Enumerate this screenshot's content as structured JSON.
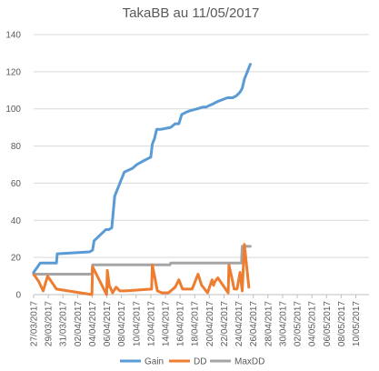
{
  "chart_data": {
    "type": "line",
    "title": "TakaBB au 11/05/2017",
    "xlabel": "",
    "ylabel": "",
    "ylim": [
      0,
      140
    ],
    "yticks": [
      0,
      20,
      40,
      60,
      80,
      100,
      120,
      140
    ],
    "x_tick_labels": [
      "27/03/2017",
      "29/03/2017",
      "31/03/2017",
      "02/04/2017",
      "04/04/2017",
      "06/04/2017",
      "08/04/2017",
      "10/04/2017",
      "12/04/2017",
      "14/04/2017",
      "16/04/2017",
      "18/04/2017",
      "20/04/2017",
      "22/04/2017",
      "24/04/2017",
      "26/04/2017",
      "28/04/2017",
      "30/04/2017",
      "02/05/2017",
      "04/05/2017",
      "06/05/2017",
      "08/05/2017",
      "10/05/2017"
    ],
    "xlim": [
      0,
      45.5
    ],
    "grid": "horizontal",
    "legend_position": "bottom",
    "series": [
      {
        "name": "Gain",
        "color": "#5b9bd5",
        "x": [
          0,
          0.9,
          2.1,
          3.1,
          3.2,
          7.6,
          8.0,
          8.2,
          9.8,
          10.2,
          10.6,
          11.0,
          11.1,
          11.6,
          11.7,
          12.3,
          13.4,
          14.0,
          14.9,
          15.9,
          16.1,
          16.4,
          16.7,
          17.0,
          17.3,
          18.6,
          19.2,
          19.7,
          20.1,
          20.6,
          21.2,
          22.2,
          23.0,
          23.4,
          24.5,
          25.0,
          26.3,
          27.0,
          27.5,
          28.0,
          28.3,
          28.6,
          29.4
        ],
        "y": [
          12,
          17,
          17,
          17,
          22,
          23,
          24,
          29,
          35,
          35,
          36,
          53,
          54,
          59,
          60,
          66,
          68,
          70,
          72,
          74,
          81,
          84,
          89,
          89,
          89,
          90,
          92,
          92,
          97,
          98,
          99,
          100,
          101,
          101,
          103,
          104,
          106,
          106,
          107,
          109,
          111,
          116,
          124
        ]
      },
      {
        "name": "DD",
        "color": "#ed7d31",
        "x": [
          0,
          0.7,
          1.3,
          1.9,
          2.4,
          3.1,
          7.9,
          8.0,
          9.9,
          10.0,
          10.3,
          10.4,
          10.7,
          11.2,
          11.7,
          12.2,
          12.5,
          16.0,
          16.1,
          16.8,
          17.4,
          18.3,
          19.2,
          19.7,
          20.2,
          20.6,
          21.5,
          22.3,
          22.8,
          23.6,
          24.2,
          24.4,
          24.6,
          25.0,
          26.4,
          26.5,
          27.0,
          27.2,
          27.6,
          28.0,
          28.3,
          28.6,
          29.2
        ],
        "y": [
          11,
          7,
          2,
          10,
          7,
          3,
          0,
          15,
          0,
          13,
          4,
          4,
          1,
          4,
          2,
          2,
          2,
          3,
          16,
          2,
          1,
          1,
          4,
          8,
          3,
          3,
          3,
          11,
          5,
          1,
          8,
          5,
          7,
          9,
          1,
          16,
          7,
          3,
          3,
          12,
          2,
          27,
          4
        ]
      },
      {
        "name": "MaxDD",
        "color": "#a5a5a5",
        "x": [
          0,
          7.9,
          8.0,
          18.5,
          18.6,
          28.2,
          28.3,
          29.4
        ],
        "y": [
          11,
          11,
          16,
          16,
          17,
          17,
          26,
          26
        ]
      }
    ]
  }
}
